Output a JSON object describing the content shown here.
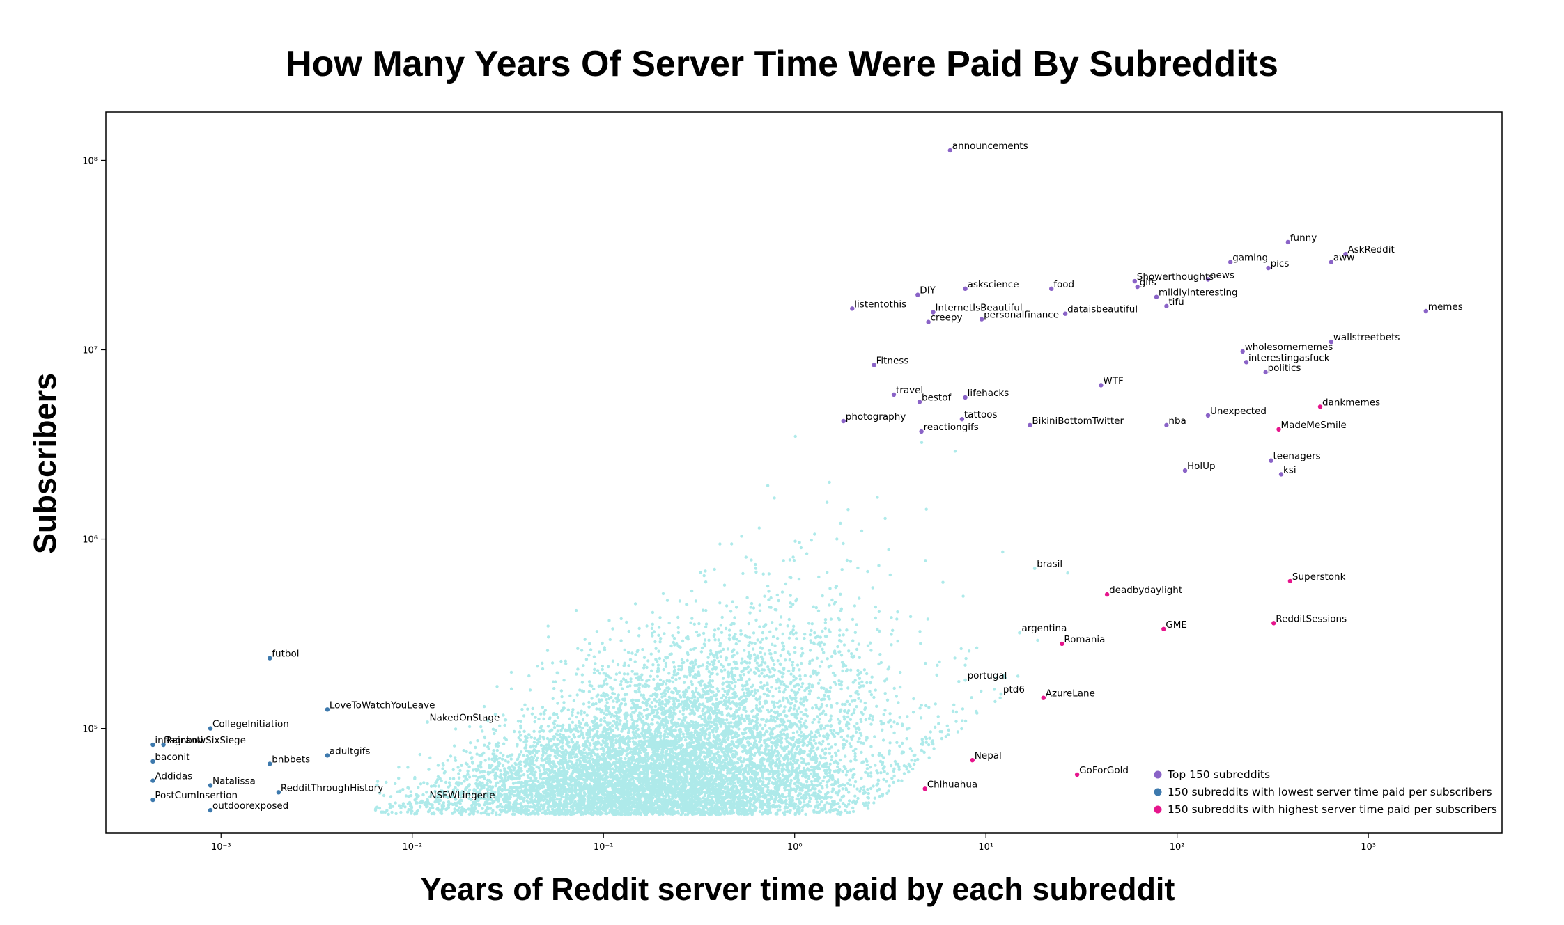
{
  "chart_data": {
    "type": "scatter",
    "title": "How Many Years Of Server Time Were Paid By Subreddits",
    "xlabel": "Years of Reddit server time paid by each subreddit",
    "ylabel": "Subscribers",
    "xscale": "log",
    "yscale": "log",
    "xlim": [
      0.00025,
      5000
    ],
    "ylim": [
      28000,
      180000000
    ],
    "x_ticks": [
      {
        "value": 0.001,
        "label": "10⁻³"
      },
      {
        "value": 0.01,
        "label": "10⁻²"
      },
      {
        "value": 0.1,
        "label": "10⁻¹"
      },
      {
        "value": 1,
        "label": "10⁰"
      },
      {
        "value": 10,
        "label": "10¹"
      },
      {
        "value": 100,
        "label": "10²"
      },
      {
        "value": 1000,
        "label": "10³"
      }
    ],
    "y_ticks": [
      {
        "value": 100000,
        "label": "10⁵"
      },
      {
        "value": 1000000,
        "label": "10⁶"
      },
      {
        "value": 10000000,
        "label": "10⁷"
      },
      {
        "value": 100000000,
        "label": "10⁸"
      }
    ],
    "grid": false,
    "legend_position": "lower-right",
    "colors": {
      "background_points": "#aeeaea",
      "top": "#8a63c7",
      "lowest": "#3d79ad",
      "highest": "#e6158c"
    },
    "series": [
      {
        "name": "Top 150 subreddits",
        "color": "#8a63c7",
        "points": [
          {
            "x": 6.5,
            "y": 113000000,
            "label": "announcements"
          },
          {
            "x": 380,
            "y": 37000000,
            "label": "funny"
          },
          {
            "x": 760,
            "y": 32000000,
            "label": "AskReddit"
          },
          {
            "x": 190,
            "y": 29000000,
            "label": "gaming"
          },
          {
            "x": 640,
            "y": 29000000,
            "label": "aww"
          },
          {
            "x": 300,
            "y": 27000000,
            "label": "pics"
          },
          {
            "x": 145,
            "y": 23500000,
            "label": "news"
          },
          {
            "x": 7.8,
            "y": 21000000,
            "label": "askscience"
          },
          {
            "x": 22,
            "y": 21000000,
            "label": "food"
          },
          {
            "x": 60,
            "y": 23000000,
            "label": "Showerthoughts"
          },
          {
            "x": 62,
            "y": 21500000,
            "label": "gifs"
          },
          {
            "x": 78,
            "y": 19000000,
            "label": "mildlyinteresting"
          },
          {
            "x": 4.4,
            "y": 19500000,
            "label": "DIY"
          },
          {
            "x": 88,
            "y": 17000000,
            "label": "tifu"
          },
          {
            "x": 2000,
            "y": 16000000,
            "label": "memes"
          },
          {
            "x": 2.0,
            "y": 16500000,
            "label": "listentothis"
          },
          {
            "x": 5.3,
            "y": 15800000,
            "label": "InternetIsBeautiful"
          },
          {
            "x": 26,
            "y": 15500000,
            "label": "dataisbeautiful"
          },
          {
            "x": 5.0,
            "y": 14000000,
            "label": "creepy"
          },
          {
            "x": 9.5,
            "y": 14500000,
            "label": "personalfinance"
          },
          {
            "x": 640,
            "y": 11000000,
            "label": "wallstreetbets"
          },
          {
            "x": 220,
            "y": 9800000,
            "label": "wholesomememes"
          },
          {
            "x": 230,
            "y": 8600000,
            "label": "interestingasfuck"
          },
          {
            "x": 2.6,
            "y": 8300000,
            "label": "Fitness"
          },
          {
            "x": 290,
            "y": 7600000,
            "label": "politics"
          },
          {
            "x": 40,
            "y": 6500000,
            "label": "WTF"
          },
          {
            "x": 3.3,
            "y": 5800000,
            "label": "travel"
          },
          {
            "x": 7.8,
            "y": 5600000,
            "label": "lifehacks"
          },
          {
            "x": 4.5,
            "y": 5300000,
            "label": "bestof"
          },
          {
            "x": 145,
            "y": 4500000,
            "label": "Unexpected"
          },
          {
            "x": 1.8,
            "y": 4200000,
            "label": "photography"
          },
          {
            "x": 7.5,
            "y": 4300000,
            "label": "tattoos"
          },
          {
            "x": 88,
            "y": 4000000,
            "label": "nba"
          },
          {
            "x": 17,
            "y": 4000000,
            "label": "BikiniBottomTwitter"
          },
          {
            "x": 4.6,
            "y": 3700000,
            "label": "reactiongifs"
          },
          {
            "x": 310,
            "y": 2600000,
            "label": "teenagers"
          },
          {
            "x": 110,
            "y": 2300000,
            "label": "HolUp"
          },
          {
            "x": 350,
            "y": 2200000,
            "label": "ksi"
          }
        ]
      },
      {
        "name": "150 subreddits with lowest server time paid per subscribers",
        "color": "#3d79ad",
        "points": [
          {
            "x": 0.0018,
            "y": 235000,
            "label": "futbol"
          },
          {
            "x": 0.0036,
            "y": 126000,
            "label": "LoveToWatchYouLeave"
          },
          {
            "x": 0.00088,
            "y": 100000,
            "label": "CollegeInitiation"
          },
          {
            "x": 0.0005,
            "y": 82000,
            "label": "RainbowSixSiege"
          },
          {
            "x": 0.00044,
            "y": 82000,
            "label": "inflagranti"
          },
          {
            "x": 0.0036,
            "y": 72000,
            "label": "adultgifs"
          },
          {
            "x": 0.00044,
            "y": 67000,
            "label": "baconit"
          },
          {
            "x": 0.0018,
            "y": 65000,
            "label": "bnbbets"
          },
          {
            "x": 0.00044,
            "y": 53000,
            "label": "Addidas"
          },
          {
            "x": 0.00088,
            "y": 50000,
            "label": "Natalissa"
          },
          {
            "x": 0.002,
            "y": 46000,
            "label": "RedditThroughHistory"
          },
          {
            "x": 0.00044,
            "y": 42000,
            "label": "PostCumInsertion"
          },
          {
            "x": 0.00088,
            "y": 37000,
            "label": "outdoorexposed"
          }
        ]
      },
      {
        "name": "150 subreddits with highest server time paid per subscribers",
        "color": "#e6158c",
        "points": [
          {
            "x": 390,
            "y": 600000,
            "label": "Superstonk"
          },
          {
            "x": 560,
            "y": 5000000,
            "label": "dankmemes"
          },
          {
            "x": 340,
            "y": 3800000,
            "label": "MadeMeSmile"
          },
          {
            "x": 43,
            "y": 510000,
            "label": "deadbydaylight"
          },
          {
            "x": 320,
            "y": 360000,
            "label": "RedditSessions"
          },
          {
            "x": 85,
            "y": 335000,
            "label": "GME"
          },
          {
            "x": 25,
            "y": 280000,
            "label": "Romania"
          },
          {
            "x": 20,
            "y": 145000,
            "label": "AzureLane"
          },
          {
            "x": 8.5,
            "y": 68000,
            "label": "Nepal"
          },
          {
            "x": 30,
            "y": 57000,
            "label": "GoForGold"
          },
          {
            "x": 4.8,
            "y": 48000,
            "label": "Chihuahua"
          }
        ]
      }
    ],
    "background_labels": [
      {
        "x": 0.012,
        "y": 108000,
        "label": "NakedOnStage"
      },
      {
        "x": 0.012,
        "y": 42000,
        "label": "NSFWLingerie"
      },
      {
        "x": 18,
        "y": 700000,
        "label": "brasil"
      },
      {
        "x": 15,
        "y": 320000,
        "label": "argentina"
      },
      {
        "x": 7.8,
        "y": 180000,
        "label": "portugal"
      },
      {
        "x": 12,
        "y": 152000,
        "label": "ptd6"
      }
    ]
  }
}
